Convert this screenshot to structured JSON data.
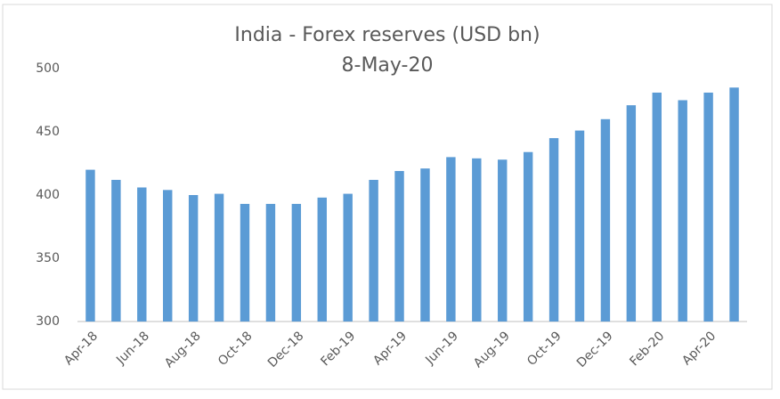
{
  "chart_data": {
    "type": "bar",
    "title": "India - Forex reserves (USD bn)",
    "subtitle": "8-May-20",
    "categories": [
      "Apr-18",
      null,
      "Jun-18",
      null,
      "Aug-18",
      null,
      "Oct-18",
      null,
      "Dec-18",
      null,
      "Feb-19",
      null,
      "Apr-19",
      null,
      "Jun-19",
      null,
      "Aug-19",
      null,
      "Oct-19",
      null,
      "Dec-19",
      null,
      "Feb-20",
      null,
      "Apr-20",
      null
    ],
    "values": [
      420,
      412,
      406,
      404,
      400,
      401,
      393,
      393,
      393,
      398,
      401,
      412,
      419,
      421,
      430,
      429,
      428,
      434,
      445,
      451,
      460,
      471,
      481,
      475,
      481,
      485
    ],
    "color": "#5b9bd5",
    "ylim": [
      300,
      500
    ],
    "yticks": [
      300,
      350,
      400,
      450,
      500
    ],
    "grid": false
  }
}
